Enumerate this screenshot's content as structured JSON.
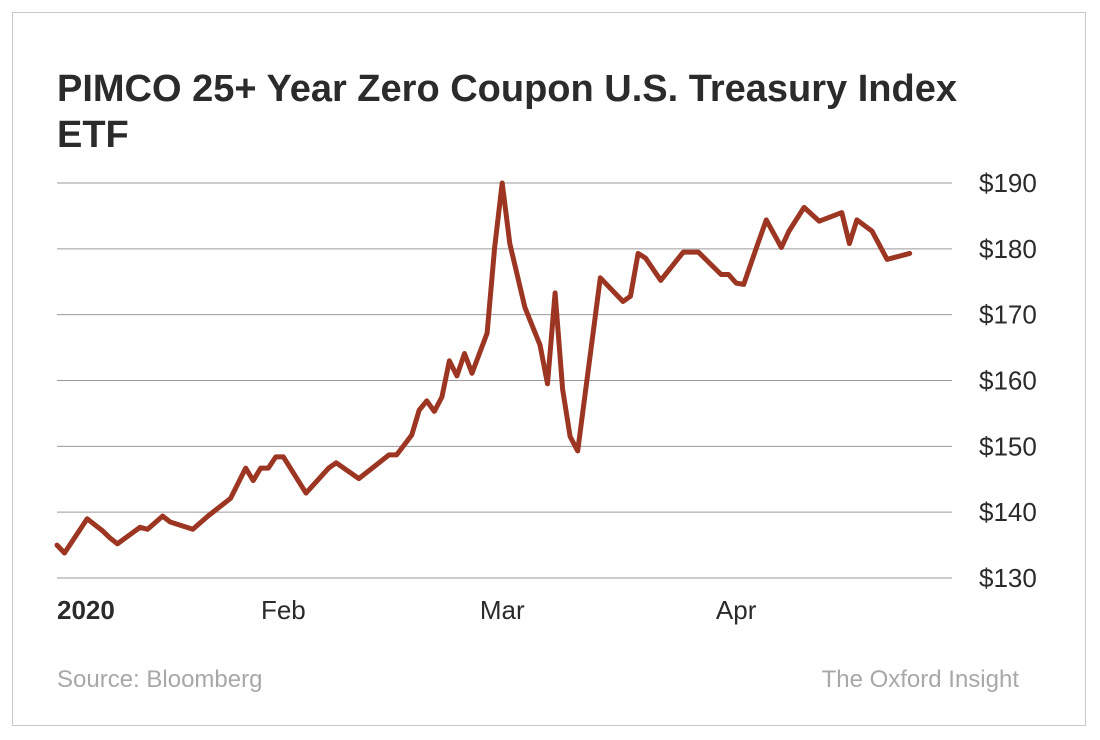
{
  "chart_data": {
    "type": "line",
    "title": "PIMCO 25+ Year Zero Coupon U.S. Treasury Index ETF",
    "xlabel": "",
    "ylabel": "",
    "ylim": [
      130,
      190
    ],
    "y_ticks": [
      190,
      180,
      170,
      160,
      150,
      140,
      130
    ],
    "y_tick_prefix": "$",
    "x_ticks": [
      {
        "label": "2020",
        "date": "2020-01-02",
        "bold": true
      },
      {
        "label": "Feb",
        "date": "2020-02-01",
        "bold": false
      },
      {
        "label": "Mar",
        "date": "2020-03-01",
        "bold": false
      },
      {
        "label": "Apr",
        "date": "2020-04-01",
        "bold": false
      }
    ],
    "xlim": [
      "2020-01-02",
      "2020-04-30"
    ],
    "grid": true,
    "line_color": "#9c3623",
    "series": [
      {
        "name": "",
        "points": [
          [
            "2020-01-02",
            135.0
          ],
          [
            "2020-01-03",
            133.8
          ],
          [
            "2020-01-06",
            139.0
          ],
          [
            "2020-01-07",
            138.1
          ],
          [
            "2020-01-08",
            137.2
          ],
          [
            "2020-01-09",
            136.1
          ],
          [
            "2020-01-10",
            135.2
          ],
          [
            "2020-01-13",
            137.7
          ],
          [
            "2020-01-14",
            137.4
          ],
          [
            "2020-01-16",
            139.4
          ],
          [
            "2020-01-17",
            138.5
          ],
          [
            "2020-01-20",
            137.4
          ],
          [
            "2020-01-22",
            139.4
          ],
          [
            "2020-01-25",
            142.1
          ],
          [
            "2020-01-27",
            146.7
          ],
          [
            "2020-01-28",
            144.8
          ],
          [
            "2020-01-29",
            146.7
          ],
          [
            "2020-01-30",
            146.7
          ],
          [
            "2020-01-31",
            148.4
          ],
          [
            "2020-02-01",
            148.4
          ],
          [
            "2020-02-04",
            142.9
          ],
          [
            "2020-02-07",
            146.7
          ],
          [
            "2020-02-08",
            147.5
          ],
          [
            "2020-02-11",
            145.1
          ],
          [
            "2020-02-15",
            148.7
          ],
          [
            "2020-02-16",
            148.7
          ],
          [
            "2020-02-18",
            151.7
          ],
          [
            "2020-02-19",
            155.5
          ],
          [
            "2020-02-20",
            156.9
          ],
          [
            "2020-02-21",
            155.3
          ],
          [
            "2020-02-22",
            157.5
          ],
          [
            "2020-02-23",
            163.0
          ],
          [
            "2020-02-24",
            160.7
          ],
          [
            "2020-02-25",
            164.1
          ],
          [
            "2020-02-26",
            161.1
          ],
          [
            "2020-02-28",
            167.2
          ],
          [
            "2020-02-29",
            180.3
          ],
          [
            "2020-03-01",
            190.0
          ],
          [
            "2020-03-02",
            180.8
          ],
          [
            "2020-03-04",
            171.1
          ],
          [
            "2020-03-06",
            165.4
          ],
          [
            "2020-03-07",
            159.5
          ],
          [
            "2020-03-08",
            173.3
          ],
          [
            "2020-03-09",
            158.7
          ],
          [
            "2020-03-10",
            151.5
          ],
          [
            "2020-03-11",
            149.3
          ],
          [
            "2020-03-14",
            175.6
          ],
          [
            "2020-03-17",
            172.0
          ],
          [
            "2020-03-18",
            172.8
          ],
          [
            "2020-03-19",
            179.3
          ],
          [
            "2020-03-20",
            178.6
          ],
          [
            "2020-03-22",
            175.2
          ],
          [
            "2020-03-25",
            179.5
          ],
          [
            "2020-03-27",
            179.5
          ],
          [
            "2020-03-30",
            176.1
          ],
          [
            "2020-03-31",
            176.1
          ],
          [
            "2020-04-01",
            174.8
          ],
          [
            "2020-04-02",
            174.6
          ],
          [
            "2020-04-04",
            181.2
          ],
          [
            "2020-04-05",
            184.4
          ],
          [
            "2020-04-07",
            180.2
          ],
          [
            "2020-04-08",
            182.7
          ],
          [
            "2020-04-10",
            186.3
          ],
          [
            "2020-04-12",
            184.2
          ],
          [
            "2020-04-15",
            185.5
          ],
          [
            "2020-04-16",
            180.8
          ],
          [
            "2020-04-17",
            184.4
          ],
          [
            "2020-04-19",
            182.7
          ],
          [
            "2020-04-21",
            178.4
          ],
          [
            "2020-04-24",
            179.3
          ]
        ]
      }
    ]
  },
  "footer": {
    "source": "Source: Bloomberg",
    "brand": "The Oxford Insight"
  }
}
